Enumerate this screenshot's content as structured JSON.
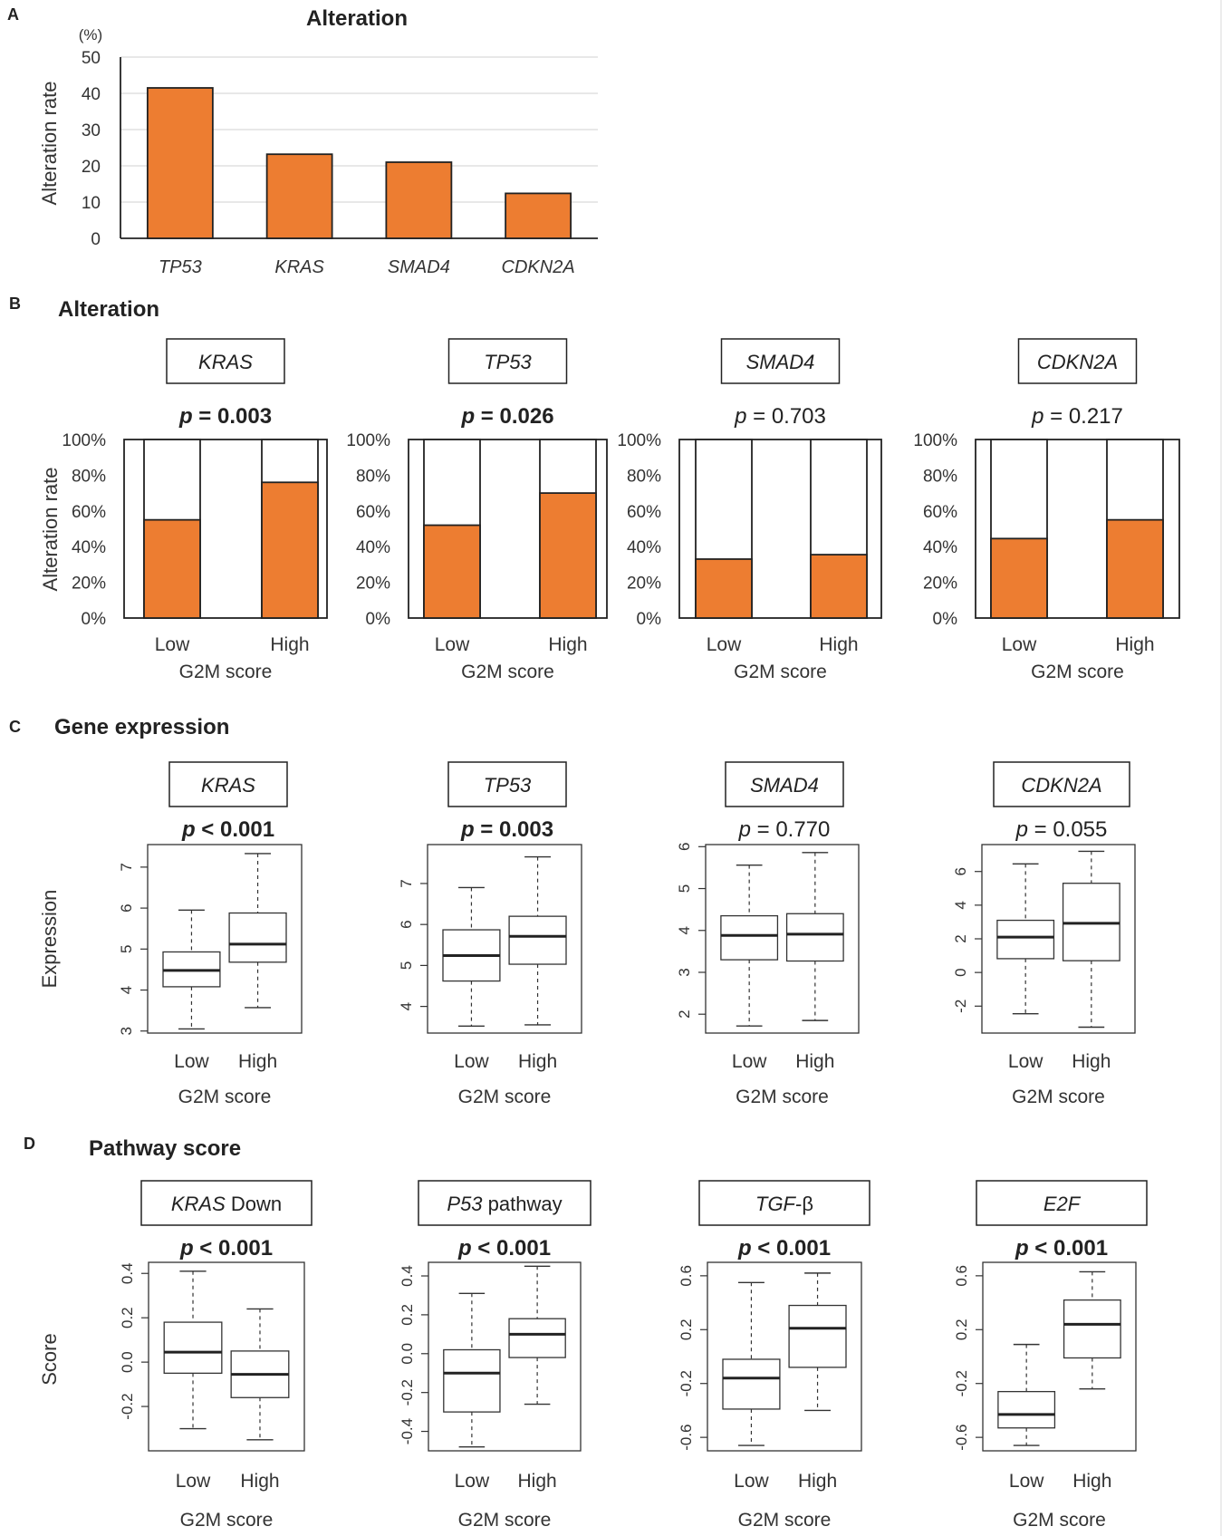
{
  "colors": {
    "bar": "#ED7D31",
    "outline": "#222222",
    "grid": "#D9D9D9"
  },
  "panels": {
    "A": {
      "letter": "A",
      "title": "Alteration"
    },
    "B": {
      "letter": "B",
      "title": "Alteration"
    },
    "C": {
      "letter": "C",
      "title": "Gene expression"
    },
    "D": {
      "letter": "D",
      "title": "Pathway score"
    }
  },
  "chart_data": [
    {
      "id": "A",
      "type": "bar",
      "title": "Alteration",
      "unit": "(%)",
      "ylabel": "Alteration rate",
      "ylim": [
        0,
        50
      ],
      "yticks": [
        "0",
        "10",
        "20",
        "30",
        "40",
        "50"
      ],
      "grid": true,
      "categories": [
        "TP53",
        "KRAS",
        "SMAD4",
        "CDKN2A"
      ],
      "values": [
        41.5,
        23.2,
        21.0,
        12.4
      ]
    },
    {
      "id": "B",
      "type": "bar",
      "stacked_percent": true,
      "ylabel": "Alteration rate",
      "xlabel": "G2M score",
      "categories": [
        "Low",
        "High"
      ],
      "yticks": [
        "0%",
        "20%",
        "40%",
        "60%",
        "80%",
        "100%"
      ],
      "ylim": [
        0,
        100
      ],
      "subplots": [
        {
          "gene": "KRAS",
          "p_prefix": "p",
          "p_rest": " = 0.003",
          "significant": true,
          "values": [
            55,
            76
          ]
        },
        {
          "gene": "TP53",
          "p_prefix": "p",
          "p_rest": " = 0.026",
          "significant": true,
          "values": [
            52,
            70
          ]
        },
        {
          "gene": "SMAD4",
          "p_prefix": "p",
          "p_rest": " = 0.703",
          "significant": false,
          "values": [
            33,
            35.5
          ]
        },
        {
          "gene": "CDKN2A",
          "p_prefix": "p",
          "p_rest": " = 0.217",
          "significant": false,
          "values": [
            44.5,
            55
          ]
        }
      ]
    },
    {
      "id": "C",
      "type": "box",
      "ylabel": "Expression",
      "xlabel": "G2M score",
      "categories": [
        "Low",
        "High"
      ],
      "subplots": [
        {
          "gene": "KRAS",
          "p_prefix": "p",
          "p_rest": " < 0.001",
          "significant": true,
          "ylim": [
            2.95,
            7.55
          ],
          "yticks": [
            3,
            4,
            5,
            6,
            7
          ],
          "ytick_labels": [
            "3",
            "4",
            "5",
            "6",
            "7"
          ],
          "boxes": [
            {
              "min": 3.05,
              "q1": 4.08,
              "median": 4.48,
              "q3": 4.93,
              "max": 5.95
            },
            {
              "min": 3.57,
              "q1": 4.68,
              "median": 5.12,
              "q3": 5.88,
              "max": 7.33
            }
          ]
        },
        {
          "gene": "TP53",
          "p_prefix": "p",
          "p_rest": " = 0.003",
          "significant": true,
          "ylim": [
            3.35,
            7.95
          ],
          "yticks": [
            4,
            5,
            6,
            7
          ],
          "ytick_labels": [
            "4",
            "5",
            "6",
            "7"
          ],
          "boxes": [
            {
              "min": 3.52,
              "q1": 4.62,
              "median": 5.24,
              "q3": 5.87,
              "max": 6.9
            },
            {
              "min": 3.55,
              "q1": 5.03,
              "median": 5.71,
              "q3": 6.2,
              "max": 7.65
            }
          ]
        },
        {
          "gene": "SMAD4",
          "p_prefix": "p",
          "p_rest": " = 0.770",
          "significant": false,
          "ylim": [
            1.55,
            6.05
          ],
          "yticks": [
            2,
            3,
            4,
            5,
            6
          ],
          "ytick_labels": [
            "2",
            "3",
            "4",
            "5",
            "6"
          ],
          "boxes": [
            {
              "min": 1.72,
              "q1": 3.3,
              "median": 3.88,
              "q3": 4.35,
              "max": 5.56
            },
            {
              "min": 1.85,
              "q1": 3.27,
              "median": 3.91,
              "q3": 4.4,
              "max": 5.86
            }
          ]
        },
        {
          "gene": "CDKN2A",
          "p_prefix": "p",
          "p_rest": " = 0.055",
          "significant": false,
          "ylim": [
            -3.6,
            7.6
          ],
          "yticks": [
            -2,
            0,
            2,
            4,
            6
          ],
          "ytick_labels": [
            "-2",
            "0",
            "2",
            "4",
            "6"
          ],
          "boxes": [
            {
              "min": -2.45,
              "q1": 0.82,
              "median": 2.1,
              "q3": 3.1,
              "max": 6.45
            },
            {
              "min": -3.25,
              "q1": 0.7,
              "median": 2.92,
              "q3": 5.3,
              "max": 7.2
            }
          ]
        }
      ]
    },
    {
      "id": "D",
      "type": "box",
      "ylabel": "Score",
      "xlabel": "G2M score",
      "categories": [
        "Low",
        "High"
      ],
      "subplots": [
        {
          "gene": "KRAS",
          "label_suffix": " Down",
          "p_prefix": "p",
          "p_rest": " < 0.001",
          "significant": true,
          "ylim": [
            -0.4,
            0.45
          ],
          "yticks": [
            -0.2,
            0,
            0.2,
            0.4
          ],
          "ytick_labels": [
            "-0.2",
            "0.0",
            "0.2",
            "0.4"
          ],
          "boxes": [
            {
              "min": -0.3,
              "q1": -0.05,
              "median": 0.045,
              "q3": 0.18,
              "max": 0.41
            },
            {
              "min": -0.35,
              "q1": -0.16,
              "median": -0.055,
              "q3": 0.05,
              "max": 0.24
            }
          ]
        },
        {
          "gene": "P53",
          "label_suffix": " pathway",
          "p_prefix": "p",
          "p_rest": " < 0.001",
          "significant": true,
          "ylim": [
            -0.5,
            0.47
          ],
          "yticks": [
            -0.4,
            -0.2,
            0,
            0.2,
            0.4
          ],
          "ytick_labels": [
            "-0.4",
            "-0.2",
            "0.0",
            "0.2",
            "0.4"
          ],
          "boxes": [
            {
              "min": -0.48,
              "q1": -0.3,
              "median": -0.1,
              "q3": 0.02,
              "max": 0.31
            },
            {
              "min": -0.26,
              "q1": -0.02,
              "median": 0.1,
              "q3": 0.18,
              "max": 0.45
            }
          ]
        },
        {
          "gene": "TGF",
          "label_suffix": "-β",
          "p_prefix": "p",
          "p_rest": " < 0.001",
          "significant": true,
          "ylim": [
            -0.7,
            0.7
          ],
          "yticks": [
            -0.6,
            -0.2,
            0.2,
            0.6
          ],
          "ytick_labels": [
            "-0.6",
            "-0.2",
            "0.2",
            "0.6"
          ],
          "boxes": [
            {
              "min": -0.66,
              "q1": -0.39,
              "median": -0.16,
              "q3": -0.02,
              "max": 0.55
            },
            {
              "min": -0.4,
              "q1": -0.08,
              "median": 0.21,
              "q3": 0.38,
              "max": 0.62
            }
          ]
        },
        {
          "gene": "E2F",
          "label_suffix": "",
          "p_prefix": "p",
          "p_rest": " < 0.001",
          "significant": true,
          "ylim": [
            -0.7,
            0.7
          ],
          "yticks": [
            -0.6,
            -0.2,
            0.2,
            0.6
          ],
          "ytick_labels": [
            "-0.6",
            "-0.2",
            "0.2",
            "0.6"
          ],
          "boxes": [
            {
              "min": -0.66,
              "q1": -0.53,
              "median": -0.43,
              "q3": -0.26,
              "max": 0.09
            },
            {
              "min": -0.24,
              "q1": -0.01,
              "median": 0.24,
              "q3": 0.42,
              "max": 0.63
            }
          ]
        }
      ]
    }
  ]
}
